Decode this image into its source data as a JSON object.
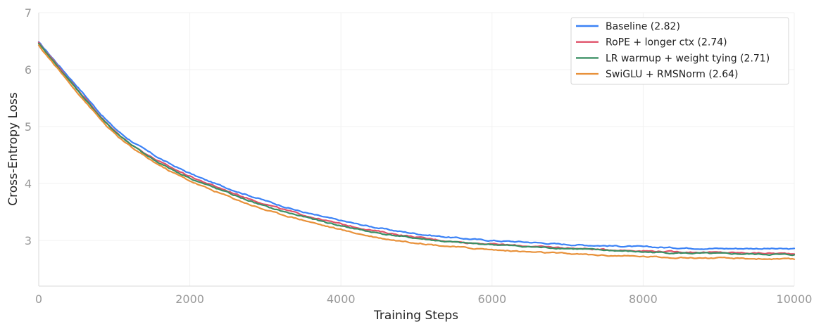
{
  "chart_data": {
    "type": "line",
    "title": "",
    "xlabel": "Training Steps",
    "ylabel": "Cross-Entropy Loss",
    "xlim": [
      0,
      10000
    ],
    "ylim": [
      2.2,
      7
    ],
    "x_ticks": [
      0,
      2000,
      4000,
      6000,
      8000,
      10000
    ],
    "x_tick_labels": [
      "0",
      "2000",
      "4000",
      "6000",
      "8000",
      "10000"
    ],
    "y_ticks": [
      3,
      4,
      5,
      6,
      7
    ],
    "y_tick_labels": [
      "3",
      "4",
      "5",
      "6",
      "7"
    ],
    "grid": true,
    "legend_position": "top-right",
    "x": [
      0,
      500,
      1000,
      1500,
      2000,
      2500,
      3000,
      3500,
      4000,
      4500,
      5000,
      5500,
      6000,
      6500,
      7000,
      7500,
      8000,
      8500,
      9000,
      9500,
      10000
    ],
    "series": [
      {
        "name": "Baseline (2.82)",
        "color": "#3b82f6",
        "values": [
          6.48,
          5.72,
          4.98,
          4.52,
          4.18,
          3.92,
          3.7,
          3.5,
          3.35,
          3.22,
          3.12,
          3.05,
          3.0,
          2.97,
          2.93,
          2.91,
          2.89,
          2.87,
          2.86,
          2.86,
          2.85
        ]
      },
      {
        "name": "RoPE + longer ctx (2.74)",
        "color": "#e0526a",
        "values": [
          6.47,
          5.68,
          4.93,
          4.46,
          4.13,
          3.87,
          3.64,
          3.45,
          3.29,
          3.16,
          3.06,
          2.98,
          2.94,
          2.9,
          2.87,
          2.84,
          2.82,
          2.8,
          2.79,
          2.78,
          2.77
        ]
      },
      {
        "name": "LR warmup + weight tying (2.71)",
        "color": "#3a8f63",
        "values": [
          6.45,
          5.66,
          4.92,
          4.44,
          4.1,
          3.84,
          3.6,
          3.42,
          3.26,
          3.13,
          3.04,
          2.97,
          2.93,
          2.89,
          2.86,
          2.83,
          2.8,
          2.78,
          2.77,
          2.76,
          2.75
        ]
      },
      {
        "name": "SwiGLU + RMSNorm (2.64)",
        "color": "#e8913a",
        "values": [
          6.42,
          5.62,
          4.88,
          4.4,
          4.05,
          3.78,
          3.54,
          3.36,
          3.19,
          3.05,
          2.96,
          2.89,
          2.84,
          2.8,
          2.77,
          2.74,
          2.72,
          2.7,
          2.69,
          2.68,
          2.67
        ]
      }
    ]
  }
}
